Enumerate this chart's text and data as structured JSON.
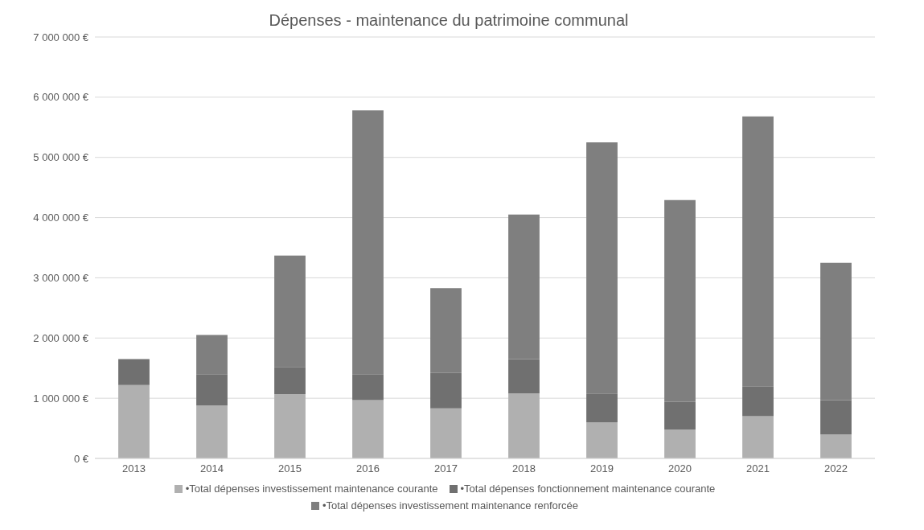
{
  "chart_data": {
    "type": "bar",
    "title": "Dépenses - maintenance du patrimoine communal",
    "stacked": true,
    "categories": [
      "2013",
      "2014",
      "2015",
      "2016",
      "2017",
      "2018",
      "2019",
      "2020",
      "2021",
      "2022"
    ],
    "series": [
      {
        "name": "•Total dépenses investissement maintenance courante",
        "color": "#b0b0b0",
        "values": [
          1220000,
          880000,
          1070000,
          970000,
          830000,
          1080000,
          600000,
          480000,
          700000,
          400000
        ]
      },
      {
        "name": "•Total dépenses fonctionnement maintenance courante",
        "color": "#707070",
        "values": [
          430000,
          520000,
          450000,
          430000,
          590000,
          570000,
          480000,
          460000,
          500000,
          570000
        ]
      },
      {
        "name": "•Total dépenses investissement maintenance renforcée",
        "color": "#7f7f7f",
        "values": [
          0,
          650000,
          1850000,
          4380000,
          1410000,
          2400000,
          4170000,
          3350000,
          4480000,
          2280000
        ]
      }
    ],
    "ylim": [
      0,
      7000000
    ],
    "yticks": [
      {
        "value": 0,
        "label": "0 €"
      },
      {
        "value": 1000000,
        "label": "1 000 000 €"
      },
      {
        "value": 2000000,
        "label": "2 000 000 €"
      },
      {
        "value": 3000000,
        "label": "3 000 000 €"
      },
      {
        "value": 4000000,
        "label": "4 000 000 €"
      },
      {
        "value": 5000000,
        "label": "5 000 000 €"
      },
      {
        "value": 6000000,
        "label": "6 000 000 €"
      },
      {
        "value": 7000000,
        "label": "7 000 000 €"
      }
    ],
    "grid": "y",
    "legend": "bottom"
  }
}
